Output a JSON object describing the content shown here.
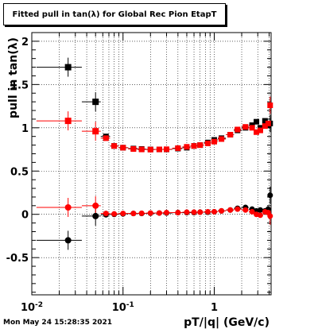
{
  "footer_timestamp": "Mon May 24 15:28:35 2021",
  "chart_data": {
    "type": "scatter",
    "title": "Fitted pull in tan(λ) for Global Rec Pion EtapT",
    "xlabel": "pT/|q| (GeV/c)",
    "ylabel": "pull in tan(λ)",
    "xscale": "log",
    "xlim": [
      0.01,
      4.2
    ],
    "ylim": [
      -0.93,
      2.1
    ],
    "grid": true,
    "x_ticks": [
      {
        "value": 0.01,
        "label_base": "10",
        "label_exp": "-2"
      },
      {
        "value": 0.1,
        "label_base": "10",
        "label_exp": "-1"
      },
      {
        "value": 1,
        "label_base": "1",
        "label_exp": ""
      }
    ],
    "y_ticks": [
      {
        "value": -0.5,
        "label": "-0.5"
      },
      {
        "value": 0,
        "label": "0"
      },
      {
        "value": 0.5,
        "label": "0.5"
      },
      {
        "value": 1,
        "label": "1"
      },
      {
        "value": 1.5,
        "label": "1.5"
      },
      {
        "value": 2,
        "label": "2"
      }
    ],
    "series": [
      {
        "color": "#000000",
        "role": "mean",
        "points": [
          [
            0.025,
            1.7
          ],
          [
            0.05,
            1.3
          ],
          [
            0.065,
            0.9
          ],
          [
            0.08,
            0.79
          ],
          [
            0.1,
            0.77
          ],
          [
            0.13,
            0.76
          ],
          [
            0.16,
            0.755
          ],
          [
            0.2,
            0.75
          ],
          [
            0.25,
            0.75
          ],
          [
            0.3,
            0.75
          ],
          [
            0.4,
            0.76
          ],
          [
            0.5,
            0.77
          ],
          [
            0.6,
            0.79
          ],
          [
            0.7,
            0.8
          ],
          [
            0.85,
            0.83
          ],
          [
            1.0,
            0.86
          ],
          [
            1.2,
            0.88
          ],
          [
            1.5,
            0.92
          ],
          [
            1.8,
            0.97
          ],
          [
            2.2,
            1.0
          ],
          [
            2.6,
            1.03
          ],
          [
            2.9,
            1.07
          ],
          [
            3.2,
            1.0
          ],
          [
            3.6,
            1.08
          ],
          [
            3.9,
            1.03
          ],
          [
            4.1,
            1.05
          ]
        ]
      },
      {
        "color": "#ff0000",
        "role": "mean",
        "points": [
          [
            0.025,
            1.08
          ],
          [
            0.05,
            0.96
          ],
          [
            0.065,
            0.88
          ],
          [
            0.08,
            0.79
          ],
          [
            0.1,
            0.77
          ],
          [
            0.13,
            0.755
          ],
          [
            0.16,
            0.75
          ],
          [
            0.2,
            0.748
          ],
          [
            0.25,
            0.75
          ],
          [
            0.3,
            0.752
          ],
          [
            0.4,
            0.765
          ],
          [
            0.5,
            0.78
          ],
          [
            0.6,
            0.79
          ],
          [
            0.7,
            0.8
          ],
          [
            0.85,
            0.82
          ],
          [
            1.0,
            0.84
          ],
          [
            1.2,
            0.87
          ],
          [
            1.5,
            0.92
          ],
          [
            1.8,
            0.98
          ],
          [
            2.2,
            1.01
          ],
          [
            2.6,
            1.0
          ],
          [
            2.9,
            0.95
          ],
          [
            3.2,
            0.97
          ],
          [
            3.6,
            1.02
          ],
          [
            3.9,
            1.05
          ],
          [
            4.1,
            1.26
          ]
        ]
      },
      {
        "color": "#000000",
        "role": "sigma",
        "points": [
          [
            0.025,
            -0.3
          ],
          [
            0.05,
            -0.02
          ],
          [
            0.065,
            -0.005
          ],
          [
            0.08,
            0.0
          ],
          [
            0.1,
            0.005
          ],
          [
            0.13,
            0.01
          ],
          [
            0.16,
            0.01
          ],
          [
            0.2,
            0.012
          ],
          [
            0.25,
            0.015
          ],
          [
            0.3,
            0.015
          ],
          [
            0.4,
            0.02
          ],
          [
            0.5,
            0.02
          ],
          [
            0.6,
            0.02
          ],
          [
            0.7,
            0.025
          ],
          [
            0.85,
            0.025
          ],
          [
            1.0,
            0.03
          ],
          [
            1.2,
            0.04
          ],
          [
            1.5,
            0.05
          ],
          [
            1.8,
            0.07
          ],
          [
            2.2,
            0.08
          ],
          [
            2.6,
            0.06
          ],
          [
            2.9,
            0.04
          ],
          [
            3.2,
            0.05
          ],
          [
            3.6,
            0.04
          ],
          [
            3.9,
            0.06
          ],
          [
            4.1,
            0.22
          ]
        ]
      },
      {
        "color": "#ff0000",
        "role": "sigma",
        "points": [
          [
            0.025,
            0.08
          ],
          [
            0.05,
            0.1
          ],
          [
            0.065,
            0.01
          ],
          [
            0.08,
            0.005
          ],
          [
            0.1,
            0.01
          ],
          [
            0.13,
            0.01
          ],
          [
            0.16,
            0.012
          ],
          [
            0.2,
            0.015
          ],
          [
            0.25,
            0.015
          ],
          [
            0.3,
            0.02
          ],
          [
            0.4,
            0.02
          ],
          [
            0.5,
            0.025
          ],
          [
            0.6,
            0.025
          ],
          [
            0.7,
            0.025
          ],
          [
            0.85,
            0.03
          ],
          [
            1.0,
            0.03
          ],
          [
            1.2,
            0.04
          ],
          [
            1.5,
            0.05
          ],
          [
            1.8,
            0.06
          ],
          [
            2.2,
            0.05
          ],
          [
            2.6,
            0.03
          ],
          [
            2.9,
            0.0
          ],
          [
            3.2,
            -0.01
          ],
          [
            3.6,
            0.03
          ],
          [
            3.9,
            0.02
          ],
          [
            4.1,
            -0.02
          ]
        ]
      }
    ]
  }
}
